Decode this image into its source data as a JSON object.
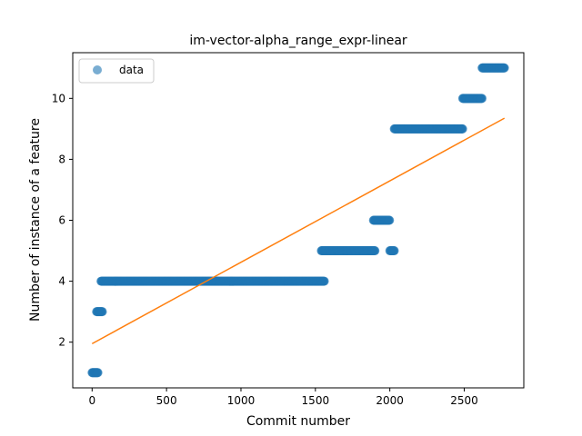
{
  "chart_data": {
    "type": "scatter",
    "title": "im-vector-alpha_range_expr-linear",
    "xlabel": "Commit number",
    "ylabel": "Number of instance of a feature",
    "xlim": [
      -130,
      2900
    ],
    "ylim": [
      0.5,
      11.5
    ],
    "x_ticks": [
      0,
      500,
      1000,
      1500,
      2000,
      2500
    ],
    "y_ticks": [
      2,
      4,
      6,
      8,
      10
    ],
    "legend": {
      "position": "top-left",
      "entries": [
        {
          "label": "data"
        }
      ]
    },
    "colors": {
      "data": "#1f77b4",
      "fit": "#ff7f0e"
    },
    "series": [
      {
        "name": "data",
        "kind": "scatter",
        "segments": [
          {
            "x_start": 0,
            "x_end": 40,
            "y": 1
          },
          {
            "x_start": 30,
            "x_end": 70,
            "y": 3
          },
          {
            "x_start": 60,
            "x_end": 1560,
            "y": 4
          },
          {
            "x_start": 1540,
            "x_end": 1900,
            "y": 5
          },
          {
            "x_start": 1890,
            "x_end": 2000,
            "y": 6
          },
          {
            "x_start": 2000,
            "x_end": 2030,
            "y": 5
          },
          {
            "x_start": 2030,
            "x_end": 2490,
            "y": 9
          },
          {
            "x_start": 2490,
            "x_end": 2620,
            "y": 10
          },
          {
            "x_start": 2620,
            "x_end": 2770,
            "y": 11
          }
        ]
      },
      {
        "kind": "line",
        "points": [
          {
            "x": 0,
            "y": 1.95
          },
          {
            "x": 2770,
            "y": 9.35
          }
        ]
      }
    ]
  }
}
